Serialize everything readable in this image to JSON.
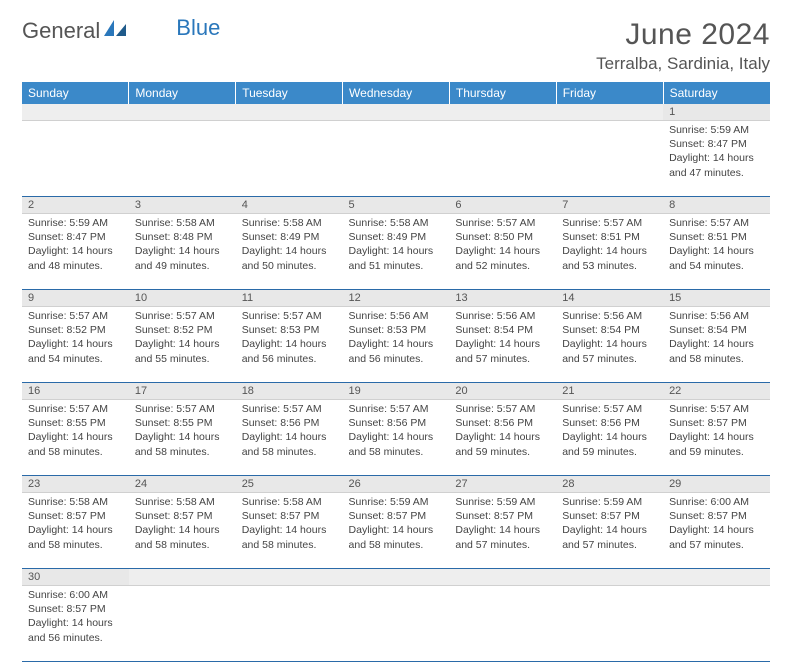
{
  "brand": {
    "general": "General",
    "blue": "Blue"
  },
  "title": "June 2024",
  "location": "Terralba, Sardinia, Italy",
  "colors": {
    "header_bg": "#3b89c9",
    "row_divider": "#2a6aa8",
    "daynum_bg": "#e8e8e8"
  },
  "dayHeaders": [
    "Sunday",
    "Monday",
    "Tuesday",
    "Wednesday",
    "Thursday",
    "Friday",
    "Saturday"
  ],
  "weeks": [
    [
      null,
      null,
      null,
      null,
      null,
      null,
      {
        "n": "1",
        "sr": "Sunrise: 5:59 AM",
        "ss": "Sunset: 8:47 PM",
        "d1": "Daylight: 14 hours",
        "d2": "and 47 minutes."
      }
    ],
    [
      {
        "n": "2",
        "sr": "Sunrise: 5:59 AM",
        "ss": "Sunset: 8:47 PM",
        "d1": "Daylight: 14 hours",
        "d2": "and 48 minutes."
      },
      {
        "n": "3",
        "sr": "Sunrise: 5:58 AM",
        "ss": "Sunset: 8:48 PM",
        "d1": "Daylight: 14 hours",
        "d2": "and 49 minutes."
      },
      {
        "n": "4",
        "sr": "Sunrise: 5:58 AM",
        "ss": "Sunset: 8:49 PM",
        "d1": "Daylight: 14 hours",
        "d2": "and 50 minutes."
      },
      {
        "n": "5",
        "sr": "Sunrise: 5:58 AM",
        "ss": "Sunset: 8:49 PM",
        "d1": "Daylight: 14 hours",
        "d2": "and 51 minutes."
      },
      {
        "n": "6",
        "sr": "Sunrise: 5:57 AM",
        "ss": "Sunset: 8:50 PM",
        "d1": "Daylight: 14 hours",
        "d2": "and 52 minutes."
      },
      {
        "n": "7",
        "sr": "Sunrise: 5:57 AM",
        "ss": "Sunset: 8:51 PM",
        "d1": "Daylight: 14 hours",
        "d2": "and 53 minutes."
      },
      {
        "n": "8",
        "sr": "Sunrise: 5:57 AM",
        "ss": "Sunset: 8:51 PM",
        "d1": "Daylight: 14 hours",
        "d2": "and 54 minutes."
      }
    ],
    [
      {
        "n": "9",
        "sr": "Sunrise: 5:57 AM",
        "ss": "Sunset: 8:52 PM",
        "d1": "Daylight: 14 hours",
        "d2": "and 54 minutes."
      },
      {
        "n": "10",
        "sr": "Sunrise: 5:57 AM",
        "ss": "Sunset: 8:52 PM",
        "d1": "Daylight: 14 hours",
        "d2": "and 55 minutes."
      },
      {
        "n": "11",
        "sr": "Sunrise: 5:57 AM",
        "ss": "Sunset: 8:53 PM",
        "d1": "Daylight: 14 hours",
        "d2": "and 56 minutes."
      },
      {
        "n": "12",
        "sr": "Sunrise: 5:56 AM",
        "ss": "Sunset: 8:53 PM",
        "d1": "Daylight: 14 hours",
        "d2": "and 56 minutes."
      },
      {
        "n": "13",
        "sr": "Sunrise: 5:56 AM",
        "ss": "Sunset: 8:54 PM",
        "d1": "Daylight: 14 hours",
        "d2": "and 57 minutes."
      },
      {
        "n": "14",
        "sr": "Sunrise: 5:56 AM",
        "ss": "Sunset: 8:54 PM",
        "d1": "Daylight: 14 hours",
        "d2": "and 57 minutes."
      },
      {
        "n": "15",
        "sr": "Sunrise: 5:56 AM",
        "ss": "Sunset: 8:54 PM",
        "d1": "Daylight: 14 hours",
        "d2": "and 58 minutes."
      }
    ],
    [
      {
        "n": "16",
        "sr": "Sunrise: 5:57 AM",
        "ss": "Sunset: 8:55 PM",
        "d1": "Daylight: 14 hours",
        "d2": "and 58 minutes."
      },
      {
        "n": "17",
        "sr": "Sunrise: 5:57 AM",
        "ss": "Sunset: 8:55 PM",
        "d1": "Daylight: 14 hours",
        "d2": "and 58 minutes."
      },
      {
        "n": "18",
        "sr": "Sunrise: 5:57 AM",
        "ss": "Sunset: 8:56 PM",
        "d1": "Daylight: 14 hours",
        "d2": "and 58 minutes."
      },
      {
        "n": "19",
        "sr": "Sunrise: 5:57 AM",
        "ss": "Sunset: 8:56 PM",
        "d1": "Daylight: 14 hours",
        "d2": "and 58 minutes."
      },
      {
        "n": "20",
        "sr": "Sunrise: 5:57 AM",
        "ss": "Sunset: 8:56 PM",
        "d1": "Daylight: 14 hours",
        "d2": "and 59 minutes."
      },
      {
        "n": "21",
        "sr": "Sunrise: 5:57 AM",
        "ss": "Sunset: 8:56 PM",
        "d1": "Daylight: 14 hours",
        "d2": "and 59 minutes."
      },
      {
        "n": "22",
        "sr": "Sunrise: 5:57 AM",
        "ss": "Sunset: 8:57 PM",
        "d1": "Daylight: 14 hours",
        "d2": "and 59 minutes."
      }
    ],
    [
      {
        "n": "23",
        "sr": "Sunrise: 5:58 AM",
        "ss": "Sunset: 8:57 PM",
        "d1": "Daylight: 14 hours",
        "d2": "and 58 minutes."
      },
      {
        "n": "24",
        "sr": "Sunrise: 5:58 AM",
        "ss": "Sunset: 8:57 PM",
        "d1": "Daylight: 14 hours",
        "d2": "and 58 minutes."
      },
      {
        "n": "25",
        "sr": "Sunrise: 5:58 AM",
        "ss": "Sunset: 8:57 PM",
        "d1": "Daylight: 14 hours",
        "d2": "and 58 minutes."
      },
      {
        "n": "26",
        "sr": "Sunrise: 5:59 AM",
        "ss": "Sunset: 8:57 PM",
        "d1": "Daylight: 14 hours",
        "d2": "and 58 minutes."
      },
      {
        "n": "27",
        "sr": "Sunrise: 5:59 AM",
        "ss": "Sunset: 8:57 PM",
        "d1": "Daylight: 14 hours",
        "d2": "and 57 minutes."
      },
      {
        "n": "28",
        "sr": "Sunrise: 5:59 AM",
        "ss": "Sunset: 8:57 PM",
        "d1": "Daylight: 14 hours",
        "d2": "and 57 minutes."
      },
      {
        "n": "29",
        "sr": "Sunrise: 6:00 AM",
        "ss": "Sunset: 8:57 PM",
        "d1": "Daylight: 14 hours",
        "d2": "and 57 minutes."
      }
    ],
    [
      {
        "n": "30",
        "sr": "Sunrise: 6:00 AM",
        "ss": "Sunset: 8:57 PM",
        "d1": "Daylight: 14 hours",
        "d2": "and 56 minutes."
      },
      null,
      null,
      null,
      null,
      null,
      null
    ]
  ]
}
